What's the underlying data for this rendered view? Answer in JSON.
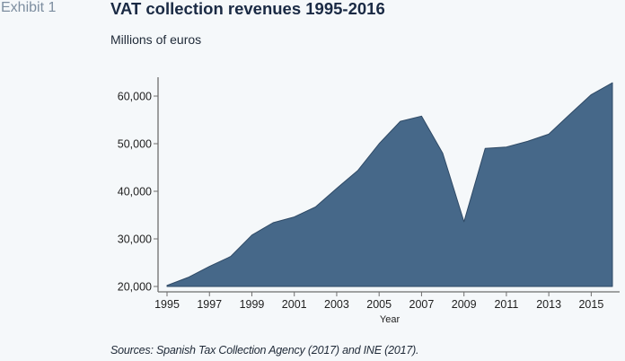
{
  "header": {
    "exhibit_label": "Exhibit 1",
    "title": "VAT collection revenues 1995-2016",
    "subtitle": "Millions of euros"
  },
  "footer": {
    "source": "Sources: Spanish Tax Collection Agency (2017) and INE (2017)."
  },
  "colors": {
    "area_fill": "#466889",
    "area_stroke": "#2f4a66",
    "axis": "#6e6e6e"
  },
  "chart_data": {
    "type": "area",
    "title": "VAT collection revenues 1995-2016",
    "subtitle": "Millions of euros",
    "xlabel": "Year",
    "ylabel": "",
    "x": [
      1995,
      1996,
      1997,
      1998,
      1999,
      2000,
      2001,
      2002,
      2003,
      2004,
      2005,
      2006,
      2007,
      2008,
      2009,
      2010,
      2011,
      2012,
      2013,
      2014,
      2015,
      2016
    ],
    "series": [
      {
        "name": "VAT collection revenues",
        "values": [
          20200,
          21900,
          24200,
          26300,
          30800,
          33400,
          34600,
          36700,
          40600,
          44400,
          50000,
          54700,
          55800,
          48000,
          33600,
          49000,
          49300,
          50500,
          52000,
          56200,
          60300,
          62800
        ]
      }
    ],
    "xlim": [
      1995,
      2016
    ],
    "ylim": [
      20000,
      60000
    ],
    "x_ticks": [
      1995,
      1997,
      1999,
      2001,
      2003,
      2005,
      2007,
      2009,
      2011,
      2013,
      2015
    ],
    "x_tick_labels": [
      "1995",
      "1997",
      "1999",
      "2001",
      "2003",
      "2005",
      "2007",
      "2009",
      "2011",
      "2013",
      "2015"
    ],
    "y_ticks": [
      20000,
      30000,
      40000,
      50000,
      60000
    ],
    "y_tick_labels": [
      "20,000",
      "30,000",
      "40,000",
      "50,000",
      "60,000"
    ],
    "grid": false,
    "legend": "none",
    "source": "Sources: Spanish Tax Collection Agency (2017) and INE (2017)."
  }
}
